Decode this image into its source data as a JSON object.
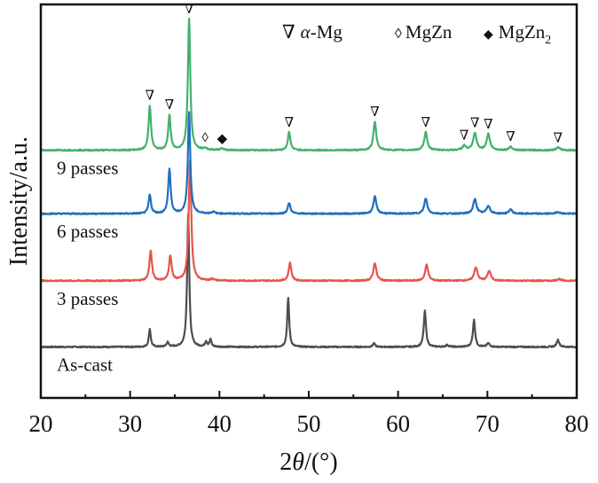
{
  "chart_data": {
    "type": "line",
    "title": "",
    "xlabel": "2θ/(°)",
    "ylabel": "Intensity/a.u.",
    "xlim": [
      20,
      80
    ],
    "xticks": [
      20,
      30,
      40,
      50,
      60,
      70,
      80
    ],
    "xticks_minor": [
      25,
      35,
      45,
      55,
      65,
      75
    ],
    "ylim_au": [
      0,
      440
    ],
    "grid": false,
    "legend": {
      "placement": "top-right",
      "entries": [
        {
          "symbol": "∇",
          "label_prefix": "α",
          "label_suffix": "-Mg",
          "phase": "alpha-Mg"
        },
        {
          "symbol": "◊",
          "label_prefix": "",
          "label_suffix": "MgZn",
          "phase": "MgZn"
        },
        {
          "symbol": "◆",
          "label_prefix": "",
          "label_suffix": "MgZn",
          "subscript": "2",
          "phase": "MgZn2"
        }
      ]
    },
    "series": [
      {
        "name": "As-cast",
        "color": "#4d4d4d",
        "offset": 57,
        "peaks": [
          [
            32.2,
            20,
            0.13
          ],
          [
            34.2,
            5,
            0.15
          ],
          [
            36.5,
            149,
            0.14
          ],
          [
            38.5,
            6,
            0.13
          ],
          [
            39.0,
            8,
            0.13
          ],
          [
            47.7,
            55,
            0.13
          ],
          [
            57.3,
            4,
            0.15
          ],
          [
            63.0,
            40,
            0.15
          ],
          [
            65.5,
            2,
            0.2
          ],
          [
            68.5,
            30,
            0.15
          ],
          [
            70.1,
            4,
            0.18
          ],
          [
            77.9,
            8,
            0.17
          ]
        ]
      },
      {
        "name": "3 passes",
        "color": "#e8544a",
        "offset": 131,
        "peaks": [
          [
            32.3,
            33,
            0.17
          ],
          [
            34.5,
            28,
            0.17
          ],
          [
            36.7,
            135,
            0.17
          ],
          [
            39.2,
            2,
            0.2
          ],
          [
            47.9,
            20,
            0.18
          ],
          [
            57.4,
            20,
            0.2
          ],
          [
            63.2,
            18,
            0.2
          ],
          [
            68.7,
            15,
            0.22
          ],
          [
            70.2,
            11,
            0.22
          ],
          [
            78.0,
            2,
            0.25
          ]
        ]
      },
      {
        "name": "6 passes",
        "color": "#1f6fc0",
        "offset": 206,
        "peaks": [
          [
            32.2,
            21,
            0.16
          ],
          [
            34.4,
            50,
            0.16
          ],
          [
            36.6,
            113,
            0.16
          ],
          [
            39.3,
            2,
            0.2
          ],
          [
            47.8,
            12,
            0.18
          ],
          [
            57.4,
            19,
            0.2
          ],
          [
            63.1,
            17,
            0.2
          ],
          [
            68.6,
            16,
            0.22
          ],
          [
            70.1,
            9,
            0.22
          ],
          [
            72.6,
            5,
            0.2
          ],
          [
            77.9,
            2,
            0.25
          ]
        ]
      },
      {
        "name": "9 passes",
        "color": "#44b06e",
        "offset": 277,
        "peaks": [
          [
            32.2,
            50,
            0.16
          ],
          [
            34.4,
            39,
            0.16
          ],
          [
            36.6,
            147,
            0.16
          ],
          [
            38.4,
            2,
            0.2
          ],
          [
            40.3,
            2,
            0.2
          ],
          [
            47.8,
            20,
            0.17
          ],
          [
            57.4,
            32,
            0.19
          ],
          [
            63.1,
            20,
            0.2
          ],
          [
            67.4,
            5,
            0.22
          ],
          [
            68.6,
            19,
            0.22
          ],
          [
            70.1,
            18,
            0.22
          ],
          [
            72.6,
            4,
            0.2
          ],
          [
            77.9,
            3,
            0.25
          ]
        ]
      }
    ],
    "phase_markers": [
      {
        "symbol": "∇",
        "phase": "alpha-Mg",
        "x": 32.2
      },
      {
        "symbol": "∇",
        "phase": "alpha-Mg",
        "x": 34.4
      },
      {
        "symbol": "∇",
        "phase": "alpha-Mg",
        "x": 36.6
      },
      {
        "symbol": "◊",
        "phase": "MgZn",
        "x": 38.4
      },
      {
        "symbol": "◆",
        "phase": "MgZn2",
        "x": 40.3
      },
      {
        "symbol": "∇",
        "phase": "alpha-Mg",
        "x": 47.8
      },
      {
        "symbol": "∇",
        "phase": "alpha-Mg",
        "x": 57.4
      },
      {
        "symbol": "∇",
        "phase": "alpha-Mg",
        "x": 63.1
      },
      {
        "symbol": "∇",
        "phase": "alpha-Mg",
        "x": 67.4
      },
      {
        "symbol": "∇",
        "phase": "alpha-Mg",
        "x": 68.6
      },
      {
        "symbol": "∇",
        "phase": "alpha-Mg",
        "x": 70.1
      },
      {
        "symbol": "∇",
        "phase": "alpha-Mg",
        "x": 72.6
      },
      {
        "symbol": "∇",
        "phase": "alpha-Mg",
        "x": 77.9
      }
    ]
  }
}
